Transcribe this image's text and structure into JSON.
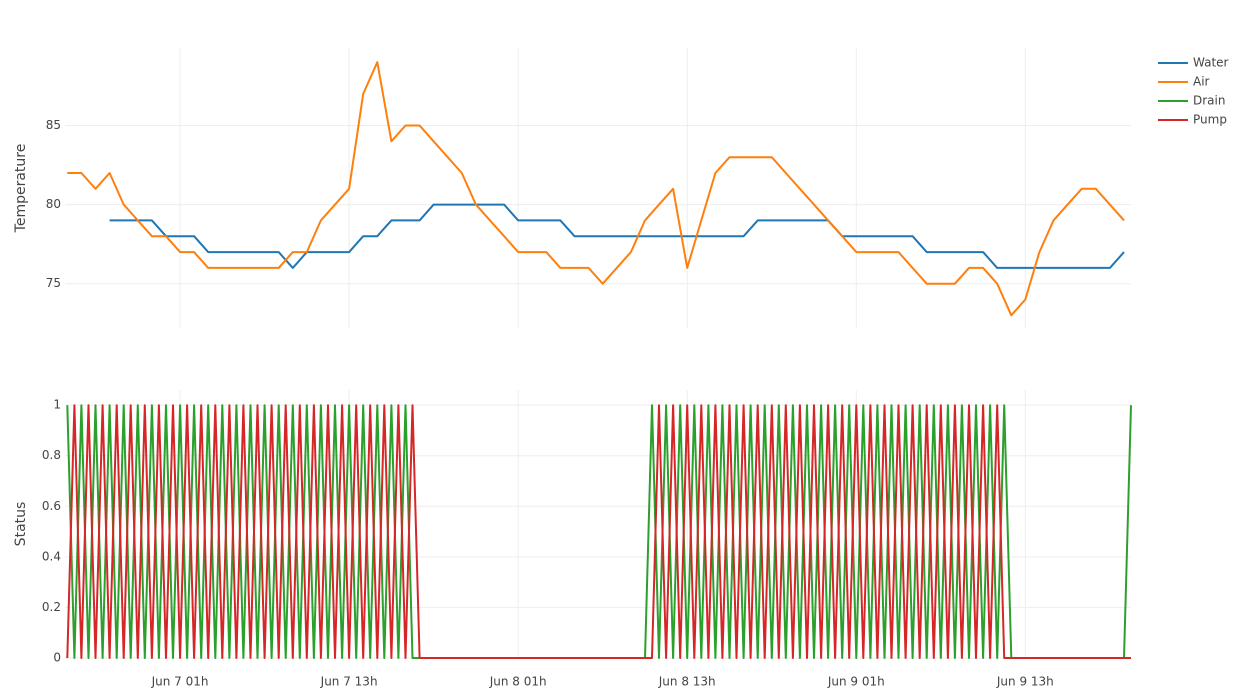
{
  "chart_data": [
    {
      "type": "line",
      "y_label": "Temperature",
      "x": [
        "Jun 6 17:00",
        "Jun 6 18:00",
        "Jun 6 19:00",
        "Jun 6 20:00",
        "Jun 6 21:00",
        "Jun 6 22:00",
        "Jun 6 23:00",
        "Jun 7 00:00",
        "Jun 7 01:00",
        "Jun 7 02:00",
        "Jun 7 03:00",
        "Jun 7 04:00",
        "Jun 7 05:00",
        "Jun 7 06:00",
        "Jun 7 07:00",
        "Jun 7 08:00",
        "Jun 7 09:00",
        "Jun 7 10:00",
        "Jun 7 11:00",
        "Jun 7 12:00",
        "Jun 7 13:00",
        "Jun 7 14:00",
        "Jun 7 15:00",
        "Jun 7 16:00",
        "Jun 7 17:00",
        "Jun 7 18:00",
        "Jun 7 19:00",
        "Jun 7 20:00",
        "Jun 7 21:00",
        "Jun 7 22:00",
        "Jun 7 23:00",
        "Jun 8 00:00",
        "Jun 8 01:00",
        "Jun 8 02:00",
        "Jun 8 03:00",
        "Jun 8 04:00",
        "Jun 8 05:00",
        "Jun 8 06:00",
        "Jun 8 07:00",
        "Jun 8 08:00",
        "Jun 8 09:00",
        "Jun 8 10:00",
        "Jun 8 11:00",
        "Jun 8 12:00",
        "Jun 8 13:00",
        "Jun 8 14:00",
        "Jun 8 15:00",
        "Jun 8 16:00",
        "Jun 8 17:00",
        "Jun 8 18:00",
        "Jun 8 19:00",
        "Jun 8 20:00",
        "Jun 8 21:00",
        "Jun 8 22:00",
        "Jun 8 23:00",
        "Jun 9 00:00",
        "Jun 9 01:00",
        "Jun 9 02:00",
        "Jun 9 03:00",
        "Jun 9 04:00",
        "Jun 9 05:00",
        "Jun 9 06:00",
        "Jun 9 07:00",
        "Jun 9 08:00",
        "Jun 9 09:00",
        "Jun 9 10:00",
        "Jun 9 11:00",
        "Jun 9 12:00",
        "Jun 9 13:00",
        "Jun 9 14:00",
        "Jun 9 15:00",
        "Jun 9 16:00",
        "Jun 9 17:00",
        "Jun 9 18:00",
        "Jun 9 19:00",
        "Jun 9 20:00"
      ],
      "series": [
        {
          "name": "Water",
          "color": "#1f77b4",
          "values": [
            null,
            null,
            null,
            79,
            79,
            79,
            79,
            78,
            78,
            78,
            77,
            77,
            77,
            77,
            77,
            77,
            76,
            77,
            77,
            77,
            77,
            78,
            78,
            79,
            79,
            79,
            80,
            80,
            80,
            80,
            80,
            80,
            79,
            79,
            79,
            79,
            78,
            78,
            78,
            78,
            78,
            78,
            78,
            78,
            78,
            78,
            78,
            78,
            78,
            79,
            79,
            79,
            79,
            79,
            79,
            78,
            78,
            78,
            78,
            78,
            78,
            77,
            77,
            77,
            77,
            77,
            76,
            76,
            76,
            76,
            76,
            76,
            76,
            76,
            76,
            77
          ]
        },
        {
          "name": "Air",
          "color": "#ff7f0e",
          "values": [
            82,
            82,
            81,
            82,
            80,
            79,
            78,
            78,
            77,
            77,
            76,
            76,
            76,
            76,
            76,
            76,
            77,
            77,
            79,
            80,
            81,
            87,
            89,
            84,
            85,
            85,
            84,
            83,
            82,
            80,
            79,
            78,
            77,
            77,
            77,
            76,
            76,
            76,
            75,
            76,
            77,
            79,
            80,
            81,
            76,
            79,
            82,
            83,
            83,
            83,
            83,
            82,
            81,
            80,
            79,
            78,
            77,
            77,
            77,
            77,
            76,
            75,
            75,
            75,
            76,
            76,
            75,
            73,
            74,
            77,
            79,
            80,
            81,
            81,
            80,
            79
          ]
        }
      ],
      "xlim": [
        "Jun 6 16:50",
        "Jun 9 20:30"
      ],
      "ylim": [
        72.2,
        89.9
      ],
      "yticks": [
        75,
        80,
        85
      ],
      "grid": true
    },
    {
      "type": "line",
      "y_label": "Status",
      "x": [
        "Jun 6 17:00",
        "Jun 6 17:30",
        "Jun 6 18:00",
        "Jun 6 18:30",
        "Jun 6 19:00",
        "Jun 6 19:30",
        "Jun 6 20:00",
        "Jun 6 20:30",
        "Jun 6 21:00",
        "Jun 6 21:30",
        "Jun 6 22:00",
        "Jun 6 22:30",
        "Jun 6 23:00",
        "Jun 6 23:30",
        "Jun 7 00:00",
        "Jun 7 00:30",
        "Jun 7 01:00",
        "Jun 7 01:30",
        "Jun 7 02:00",
        "Jun 7 02:30",
        "Jun 7 03:00",
        "Jun 7 03:30",
        "Jun 7 04:00",
        "Jun 7 04:30",
        "Jun 7 05:00",
        "Jun 7 05:30",
        "Jun 7 06:00",
        "Jun 7 06:30",
        "Jun 7 07:00",
        "Jun 7 07:30",
        "Jun 7 08:00",
        "Jun 7 08:30",
        "Jun 7 09:00",
        "Jun 7 09:30",
        "Jun 7 10:00",
        "Jun 7 10:30",
        "Jun 7 11:00",
        "Jun 7 11:30",
        "Jun 7 12:00",
        "Jun 7 12:30",
        "Jun 7 13:00",
        "Jun 7 13:30",
        "Jun 7 14:00",
        "Jun 7 14:30",
        "Jun 7 15:00",
        "Jun 7 15:30",
        "Jun 7 16:00",
        "Jun 7 16:30",
        "Jun 7 17:00",
        "Jun 7 17:30",
        "Jun 7 18:00",
        "Jun 7 18:30",
        "Jun 7 19:00",
        "Jun 7 19:30",
        "Jun 7 20:00",
        "Jun 7 20:30",
        "Jun 7 21:00",
        "Jun 7 21:30",
        "Jun 7 22:00",
        "Jun 7 22:30",
        "Jun 7 23:00",
        "Jun 7 23:30",
        "Jun 8 00:00",
        "Jun 8 00:30",
        "Jun 8 01:00",
        "Jun 8 01:30",
        "Jun 8 02:00",
        "Jun 8 02:30",
        "Jun 8 03:00",
        "Jun 8 03:30",
        "Jun 8 04:00",
        "Jun 8 04:30",
        "Jun 8 05:00",
        "Jun 8 05:30",
        "Jun 8 06:00",
        "Jun 8 06:30",
        "Jun 8 07:00",
        "Jun 8 07:30",
        "Jun 8 08:00",
        "Jun 8 08:30",
        "Jun 8 09:00",
        "Jun 8 09:30",
        "Jun 8 10:00",
        "Jun 8 10:30",
        "Jun 8 11:00",
        "Jun 8 11:30",
        "Jun 8 12:00",
        "Jun 8 12:30",
        "Jun 8 13:00",
        "Jun 8 13:30",
        "Jun 8 14:00",
        "Jun 8 14:30",
        "Jun 8 15:00",
        "Jun 8 15:30",
        "Jun 8 16:00",
        "Jun 8 16:30",
        "Jun 8 17:00",
        "Jun 8 17:30",
        "Jun 8 18:00",
        "Jun 8 18:30",
        "Jun 8 19:00",
        "Jun 8 19:30",
        "Jun 8 20:00",
        "Jun 8 20:30",
        "Jun 8 21:00",
        "Jun 8 21:30",
        "Jun 8 22:00",
        "Jun 8 22:30",
        "Jun 8 23:00",
        "Jun 8 23:30",
        "Jun 9 00:00",
        "Jun 9 00:30",
        "Jun 9 01:00",
        "Jun 9 01:30",
        "Jun 9 02:00",
        "Jun 9 02:30",
        "Jun 9 03:00",
        "Jun 9 03:30",
        "Jun 9 04:00",
        "Jun 9 04:30",
        "Jun 9 05:00",
        "Jun 9 05:30",
        "Jun 9 06:00",
        "Jun 9 06:30",
        "Jun 9 07:00",
        "Jun 9 07:30",
        "Jun 9 08:00",
        "Jun 9 08:30",
        "Jun 9 09:00",
        "Jun 9 09:30",
        "Jun 9 10:00",
        "Jun 9 10:30",
        "Jun 9 11:00",
        "Jun 9 11:30",
        "Jun 9 12:00",
        "Jun 9 12:30",
        "Jun 9 13:00",
        "Jun 9 13:30",
        "Jun 9 14:00",
        "Jun 9 14:30",
        "Jun 9 15:00",
        "Jun 9 15:30",
        "Jun 9 16:00",
        "Jun 9 16:30",
        "Jun 9 17:00",
        "Jun 9 17:30",
        "Jun 9 18:00",
        "Jun 9 18:30",
        "Jun 9 19:00",
        "Jun 9 19:30",
        "Jun 9 20:00",
        "Jun 9 20:30"
      ],
      "series": [
        {
          "name": "Drain",
          "color": "#2ca02c",
          "values": [
            1,
            0,
            1,
            0,
            1,
            0,
            1,
            0,
            1,
            0,
            1,
            0,
            1,
            0,
            1,
            0,
            1,
            0,
            1,
            0,
            1,
            0,
            1,
            0,
            1,
            0,
            1,
            0,
            1,
            0,
            1,
            0,
            1,
            0,
            1,
            0,
            1,
            0,
            1,
            0,
            1,
            0,
            1,
            0,
            1,
            0,
            1,
            0,
            1,
            0,
            0,
            0,
            0,
            0,
            0,
            0,
            0,
            0,
            0,
            0,
            0,
            0,
            0,
            0,
            0,
            0,
            0,
            0,
            0,
            0,
            0,
            0,
            0,
            0,
            0,
            0,
            0,
            0,
            0,
            0,
            0,
            0,
            0,
            1,
            0,
            1,
            0,
            1,
            0,
            1,
            0,
            1,
            0,
            1,
            0,
            1,
            0,
            1,
            0,
            1,
            0,
            1,
            0,
            1,
            0,
            1,
            0,
            1,
            0,
            1,
            0,
            1,
            0,
            1,
            0,
            1,
            0,
            1,
            0,
            1,
            0,
            1,
            0,
            1,
            0,
            1,
            0,
            1,
            0,
            1,
            0,
            1,
            0,
            1,
            0,
            0,
            0,
            0,
            0,
            0,
            0,
            0,
            0,
            0,
            0,
            0,
            0,
            0,
            0,
            0,
            0,
            1
          ]
        },
        {
          "name": "Pump",
          "color": "#d62728",
          "values": [
            0,
            1,
            0,
            1,
            0,
            1,
            0,
            1,
            0,
            1,
            0,
            1,
            0,
            1,
            0,
            1,
            0,
            1,
            0,
            1,
            0,
            1,
            0,
            1,
            0,
            1,
            0,
            1,
            0,
            1,
            0,
            1,
            0,
            1,
            0,
            1,
            0,
            1,
            0,
            1,
            0,
            1,
            0,
            1,
            0,
            1,
            0,
            1,
            0,
            1,
            0,
            0,
            0,
            0,
            0,
            0,
            0,
            0,
            0,
            0,
            0,
            0,
            0,
            0,
            0,
            0,
            0,
            0,
            0,
            0,
            0,
            0,
            0,
            0,
            0,
            0,
            0,
            0,
            0,
            0,
            0,
            0,
            0,
            0,
            1,
            0,
            1,
            0,
            1,
            0,
            1,
            0,
            1,
            0,
            1,
            0,
            1,
            0,
            1,
            0,
            1,
            0,
            1,
            0,
            1,
            0,
            1,
            0,
            1,
            0,
            1,
            0,
            1,
            0,
            1,
            0,
            1,
            0,
            1,
            0,
            1,
            0,
            1,
            0,
            1,
            0,
            1,
            0,
            1,
            0,
            1,
            0,
            1,
            0,
            0,
            0,
            0,
            0,
            0,
            0,
            0,
            0,
            0,
            0,
            0,
            0,
            0,
            0,
            0,
            0,
            0,
            0
          ]
        }
      ],
      "xlim": [
        "Jun 6 16:50",
        "Jun 9 20:30"
      ],
      "xticks": [
        {
          "value": "Jun 7 01:00",
          "label": "Jun 7 01h"
        },
        {
          "value": "Jun 7 13:00",
          "label": "Jun 7 13h"
        },
        {
          "value": "Jun 8 01:00",
          "label": "Jun 8 01h"
        },
        {
          "value": "Jun 8 13:00",
          "label": "Jun 8 13h"
        },
        {
          "value": "Jun 9 01:00",
          "label": "Jun 9 01h"
        },
        {
          "value": "Jun 9 13:00",
          "label": "Jun 9 13h"
        }
      ],
      "ylim": [
        0,
        1.06
      ],
      "yticks": [
        0,
        0.2,
        0.4,
        0.6,
        0.8,
        1
      ],
      "grid": true
    }
  ]
}
